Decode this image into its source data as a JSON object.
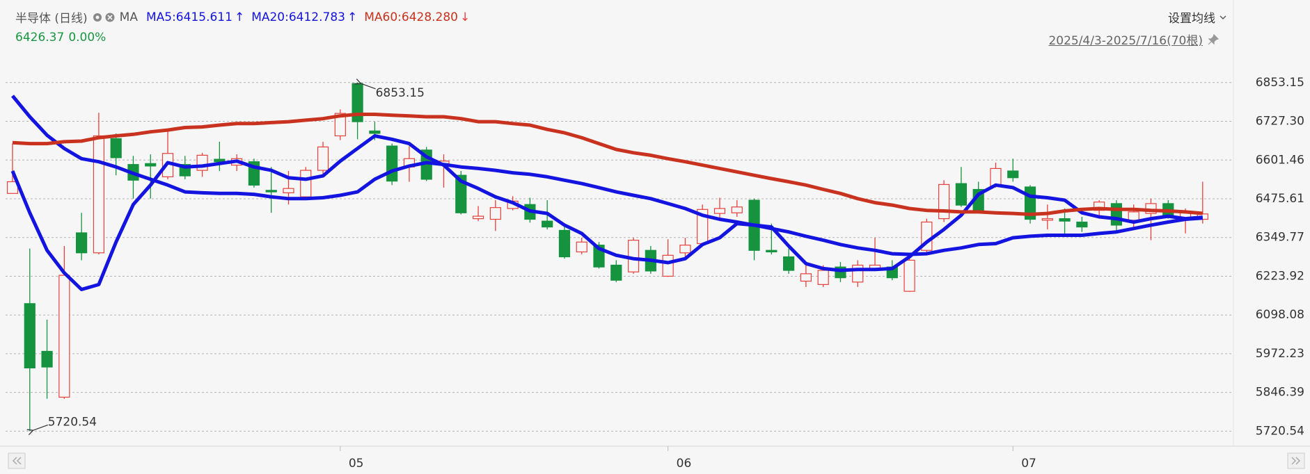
{
  "chart_data": {
    "type": "candlestick",
    "title": "半导体 (日线)",
    "indicator": "MA",
    "change": 0,
    "change_label": "0.00%",
    "settings_label": "设置均线",
    "range_label": "2025/4/3-2025/7/16(70根)",
    "up_color": "#e8403a",
    "down_color": "#15933f",
    "categories": [
      null,
      null,
      null,
      null,
      null,
      null,
      null,
      null,
      null,
      null,
      null,
      null,
      null,
      null,
      null,
      null,
      null,
      null,
      null,
      "05",
      null,
      null,
      null,
      null,
      null,
      null,
      null,
      null,
      null,
      null,
      null,
      null,
      null,
      null,
      null,
      null,
      null,
      null,
      "06",
      null,
      null,
      null,
      null,
      null,
      null,
      null,
      null,
      null,
      null,
      null,
      null,
      null,
      null,
      null,
      null,
      null,
      null,
      null,
      "07",
      null,
      null,
      null,
      null,
      null,
      null,
      null,
      null,
      null,
      null,
      null
    ],
    "open": [
      6493,
      6135,
      5980,
      5831,
      6365,
      6300,
      6671,
      6587,
      6590,
      6547,
      6587,
      6568,
      6604,
      6585,
      6596,
      6503,
      6495,
      6482,
      6568,
      6680,
      6850,
      6696,
      6647,
      6579,
      6634,
      6590,
      6552,
      6411,
      6409,
      6444,
      6457,
      6403,
      6373,
      6303,
      6325,
      6260,
      6238,
      6308,
      6224,
      6300,
      6330,
      6428,
      6430,
      6471,
      6308,
      6287,
      6208,
      6197,
      6254,
      6205,
      6249,
      6254,
      6175,
      6308,
      6411,
      6525,
      6506,
      6517,
      6566,
      6514,
      6406,
      6411,
      6400,
      6438,
      6460,
      6406,
      6428,
      6460,
      6411,
      6409
    ],
    "high": [
      6655,
      6314,
      6083,
      6322,
      6430,
      6755,
      6688,
      6615,
      6620,
      6701,
      6615,
      6625,
      6661,
      6620,
      6606,
      6579,
      6566,
      6579,
      6661,
      6766,
      6853.15,
      6726,
      6655,
      6647,
      6644,
      6620,
      6566,
      6452,
      6471,
      6484,
      6479,
      6471,
      6390,
      6349,
      6335,
      6276,
      6349,
      6322,
      6344,
      6349,
      6457,
      6479,
      6471,
      6476,
      6395,
      6314,
      6260,
      6260,
      6270,
      6276,
      6349,
      6276,
      6281,
      6411,
      6536,
      6579,
      6531,
      6593,
      6606,
      6520,
      6457,
      6444,
      6417,
      6471,
      6471,
      6457,
      6476,
      6471,
      6444,
      6531
    ],
    "low": [
      6493,
      5720.54,
      5826,
      5826,
      6276,
      6295,
      6552,
      6476,
      6476,
      6539,
      6539,
      6547,
      6566,
      6566,
      6512,
      6430,
      6457,
      6476,
      6552,
      6666,
      6669,
      6666,
      6520,
      6531,
      6533,
      6512,
      6425,
      6403,
      6371,
      6438,
      6398,
      6376,
      6281,
      6295,
      6249,
      6205,
      6232,
      6232,
      6222,
      6281,
      6325,
      6411,
      6417,
      6276,
      6295,
      6232,
      6189,
      6189,
      6205,
      6189,
      6241,
      6211,
      6173,
      6295,
      6400,
      6449,
      6428,
      6512,
      6531,
      6395,
      6376,
      6363,
      6368,
      6411,
      6368,
      6384,
      6341,
      6411,
      6363,
      6395
    ],
    "close": [
      6531,
      5926,
      5929,
      6227,
      6300,
      6680,
      6609,
      6536,
      6582,
      6623,
      6550,
      6617,
      6596,
      6606,
      6520,
      6498,
      6509,
      6568,
      6644,
      6753,
      6726,
      6688,
      6533,
      6606,
      6539,
      6598,
      6430,
      6419,
      6447,
      6468,
      6409,
      6384,
      6287,
      6335,
      6254,
      6211,
      6341,
      6241,
      6292,
      6325,
      6441,
      6444,
      6449,
      6308,
      6303,
      6243,
      6232,
      6243,
      6219,
      6260,
      6260,
      6219,
      6276,
      6400,
      6522,
      6455,
      6438,
      6574,
      6544,
      6409,
      6411,
      6403,
      6384,
      6465,
      6390,
      6433,
      6460,
      6422,
      6433,
      6426.37
    ],
    "series": [
      {
        "name": "MA5:6415.611",
        "trend": "↑",
        "color": "#1414e0",
        "values": [
          6566,
          6430,
          6308,
          6235,
          6181,
          6197,
          6335,
          6457,
          6520,
          6593,
          6579,
          6582,
          6590,
          6598,
          6579,
          6568,
          6544,
          6539,
          6550,
          6598,
          6639,
          6680,
          6669,
          6655,
          6612,
          6585,
          6533,
          6509,
          6482,
          6463,
          6436,
          6428,
          6390,
          6363,
          6314,
          6292,
          6281,
          6276,
          6268,
          6281,
          6327,
          6349,
          6395,
          6390,
          6384,
          6322,
          6265,
          6249,
          6243,
          6246,
          6246,
          6249,
          6287,
          6335,
          6376,
          6422,
          6490,
          6520,
          6512,
          6484,
          6479,
          6471,
          6430,
          6417,
          6411,
          6400,
          6411,
          6419,
          6411,
          6415.611
        ]
      },
      {
        "name": "MA20:6412.783",
        "trend": "↑",
        "color": "#1414e0",
        "values": [
          6810,
          6742,
          6682,
          6639,
          6606,
          6596,
          6579,
          6558,
          6539,
          6520,
          6498,
          6495,
          6493,
          6493,
          6490,
          6482,
          6476,
          6476,
          6479,
          6487,
          6498,
          6539,
          6566,
          6582,
          6593,
          6587,
          6579,
          6574,
          6568,
          6560,
          6555,
          6547,
          6536,
          6525,
          6512,
          6498,
          6487,
          6476,
          6460,
          6444,
          6422,
          6409,
          6400,
          6390,
          6379,
          6368,
          6354,
          6341,
          6327,
          6316,
          6308,
          6297,
          6295,
          6297,
          6308,
          6316,
          6327,
          6330,
          6349,
          6354,
          6357,
          6357,
          6357,
          6363,
          6368,
          6379,
          6390,
          6400,
          6409,
          6412.783
        ]
      },
      {
        "name": "MA60:6428.280",
        "trend": "↓",
        "color": "#c8321e",
        "values": [
          6658,
          6655,
          6655,
          6661,
          6663,
          6674,
          6680,
          6685,
          6693,
          6699,
          6707,
          6709,
          6715,
          6720,
          6720,
          6723,
          6726,
          6731,
          6736,
          6745,
          6750,
          6750,
          6747,
          6745,
          6742,
          6742,
          6736,
          6726,
          6726,
          6720,
          6715,
          6701,
          6690,
          6674,
          6655,
          6636,
          6625,
          6617,
          6606,
          6596,
          6585,
          6574,
          6563,
          6552,
          6541,
          6531,
          6520,
          6506,
          6493,
          6476,
          6463,
          6455,
          6444,
          6438,
          6436,
          6433,
          6433,
          6430,
          6428,
          6425,
          6428,
          6436,
          6441,
          6444,
          6441,
          6441,
          6438,
          6436,
          6433,
          6428.28
        ]
      }
    ],
    "ylim": [
      5671.77,
      6882.96
    ],
    "yticks": [
      5720.54,
      5846.39,
      5972.23,
      6098.08,
      6223.92,
      6349.77,
      6475.61,
      6601.46,
      {
        "value": 6727.3,
        "label": "6727.30"
      },
      6853.15
    ],
    "grid": true
  }
}
